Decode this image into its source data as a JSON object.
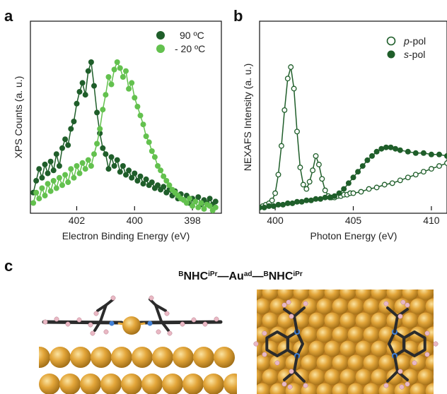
{
  "panels": {
    "a": "a",
    "b": "b",
    "c": "c"
  },
  "colors": {
    "dark_green": "#1f5e2a",
    "light_green": "#63c14e",
    "gold": "#e3a63a",
    "carbon": "#2b2b2b",
    "nitrogen": "#3f7fd6",
    "hydrogen": "#e9b8c4"
  },
  "chart_data": [
    {
      "type": "scatter",
      "panel": "a",
      "title": "",
      "xlabel": "Electron Binding Energy (eV)",
      "ylabel": "XPS Counts (a. u.)",
      "xlim": [
        403.6,
        397.0
      ],
      "x_reversed": true,
      "ylim": [
        0,
        1
      ],
      "x_ticks": [
        402,
        400,
        398
      ],
      "y_ticks": [],
      "grid": false,
      "legend_position": "top-right",
      "series": [
        {
          "name": "90 ºC",
          "color": "#1f5e2a",
          "x": [
            403.5,
            403.4,
            403.3,
            403.2,
            403.1,
            403.0,
            402.9,
            402.8,
            402.7,
            402.6,
            402.5,
            402.4,
            402.3,
            402.2,
            402.1,
            402.0,
            401.9,
            401.8,
            401.7,
            401.6,
            401.5,
            401.4,
            401.3,
            401.2,
            401.1,
            401.0,
            400.9,
            400.8,
            400.7,
            400.6,
            400.5,
            400.4,
            400.3,
            400.2,
            400.1,
            400.0,
            399.9,
            399.8,
            399.7,
            399.6,
            399.5,
            399.4,
            399.3,
            399.2,
            399.1,
            399.0,
            398.9,
            398.8,
            398.7,
            398.6,
            398.5,
            398.4,
            398.3,
            398.2,
            398.1,
            398.0,
            397.9,
            397.8,
            397.7,
            397.6,
            397.5,
            397.4,
            397.3,
            397.2
          ],
          "y": [
            0.12,
            0.2,
            0.28,
            0.22,
            0.31,
            0.25,
            0.33,
            0.27,
            0.38,
            0.3,
            0.42,
            0.48,
            0.44,
            0.55,
            0.6,
            0.72,
            0.8,
            0.86,
            0.78,
            0.94,
            1.0,
            0.84,
            0.66,
            0.52,
            0.42,
            0.38,
            0.28,
            0.36,
            0.3,
            0.34,
            0.26,
            0.3,
            0.24,
            0.27,
            0.22,
            0.25,
            0.2,
            0.23,
            0.18,
            0.21,
            0.17,
            0.19,
            0.15,
            0.17,
            0.14,
            0.16,
            0.12,
            0.14,
            0.1,
            0.13,
            0.08,
            0.11,
            0.07,
            0.1,
            0.05,
            0.08,
            0.06,
            0.09,
            0.04,
            0.07,
            0.05,
            0.08,
            0.04,
            0.06
          ]
        },
        {
          "name": "- 20 ºC",
          "color": "#63c14e",
          "x": [
            403.5,
            403.4,
            403.3,
            403.2,
            403.1,
            403.0,
            402.9,
            402.8,
            402.7,
            402.6,
            402.5,
            402.4,
            402.3,
            402.2,
            402.1,
            402.0,
            401.9,
            401.8,
            401.7,
            401.6,
            401.5,
            401.4,
            401.3,
            401.2,
            401.1,
            401.0,
            400.9,
            400.8,
            400.7,
            400.6,
            400.5,
            400.4,
            400.3,
            400.2,
            400.1,
            400.0,
            399.9,
            399.8,
            399.7,
            399.6,
            399.5,
            399.4,
            399.3,
            399.2,
            399.1,
            399.0,
            398.9,
            398.8,
            398.7,
            398.6,
            398.5,
            398.4,
            398.3,
            398.2,
            398.1,
            398.0,
            397.9,
            397.8,
            397.7,
            397.6,
            397.5,
            397.4,
            397.3,
            397.2
          ],
          "y": [
            0.05,
            0.12,
            0.08,
            0.15,
            0.1,
            0.18,
            0.13,
            0.2,
            0.15,
            0.22,
            0.17,
            0.24,
            0.19,
            0.28,
            0.22,
            0.3,
            0.25,
            0.32,
            0.28,
            0.34,
            0.3,
            0.38,
            0.45,
            0.55,
            0.68,
            0.78,
            0.9,
            0.85,
            0.95,
            1.0,
            0.96,
            0.9,
            0.94,
            0.82,
            0.86,
            0.76,
            0.7,
            0.64,
            0.58,
            0.5,
            0.46,
            0.4,
            0.36,
            0.3,
            0.27,
            0.23,
            0.2,
            0.17,
            0.14,
            0.12,
            0.1,
            0.08,
            0.07,
            0.05,
            0.08,
            0.03,
            0.06,
            0.02,
            0.05,
            0.01,
            0.04,
            0.03,
            0.0,
            0.02
          ]
        }
      ]
    },
    {
      "type": "line",
      "panel": "b",
      "title": "",
      "xlabel": "Photon Energy (eV)",
      "ylabel": "NEXAFS Intensity (a. u.)",
      "xlim": [
        399.0,
        411.0
      ],
      "ylim": [
        0,
        1
      ],
      "x_ticks": [
        400,
        405,
        410
      ],
      "y_ticks": [],
      "grid": false,
      "legend_position": "top-right",
      "series": [
        {
          "name_parts": [
            "p",
            "-pol"
          ],
          "marker": "open-circle",
          "color": "#1f5e2a",
          "x": [
            399.0,
            399.2,
            399.4,
            399.6,
            399.8,
            400.0,
            400.2,
            400.4,
            400.6,
            400.8,
            401.0,
            401.2,
            401.4,
            401.6,
            401.8,
            402.0,
            402.2,
            402.4,
            402.6,
            402.8,
            403.0,
            403.2,
            403.4,
            403.6,
            403.8,
            404.0,
            404.2,
            404.4,
            404.6,
            404.8,
            405.0,
            405.5,
            406.0,
            406.5,
            407.0,
            407.5,
            408.0,
            408.5,
            409.0,
            409.5,
            410.0,
            410.5,
            411.0
          ],
          "y": [
            0.02,
            0.03,
            0.04,
            0.05,
            0.07,
            0.12,
            0.25,
            0.45,
            0.7,
            0.92,
            1.0,
            0.85,
            0.55,
            0.3,
            0.18,
            0.15,
            0.2,
            0.28,
            0.38,
            0.32,
            0.22,
            0.14,
            0.1,
            0.09,
            0.09,
            0.1,
            0.1,
            0.11,
            0.11,
            0.12,
            0.12,
            0.13,
            0.15,
            0.16,
            0.18,
            0.19,
            0.21,
            0.23,
            0.25,
            0.27,
            0.29,
            0.31,
            0.33
          ]
        },
        {
          "name_parts": [
            "s",
            "-pol"
          ],
          "marker": "filled-circle",
          "color": "#1f5e2a",
          "x": [
            399.0,
            399.3,
            399.6,
            399.9,
            400.2,
            400.5,
            400.8,
            401.1,
            401.4,
            401.7,
            402.0,
            402.3,
            402.6,
            402.9,
            403.2,
            403.5,
            403.8,
            404.1,
            404.4,
            404.7,
            405.0,
            405.3,
            405.6,
            405.9,
            406.2,
            406.5,
            406.8,
            407.1,
            407.4,
            407.7,
            408.0,
            408.5,
            409.0,
            409.5,
            410.0,
            410.5,
            411.0
          ],
          "y": [
            0.02,
            0.02,
            0.03,
            0.03,
            0.04,
            0.04,
            0.05,
            0.05,
            0.06,
            0.06,
            0.07,
            0.07,
            0.08,
            0.08,
            0.09,
            0.09,
            0.1,
            0.12,
            0.15,
            0.19,
            0.23,
            0.27,
            0.31,
            0.35,
            0.38,
            0.41,
            0.43,
            0.44,
            0.44,
            0.43,
            0.42,
            0.41,
            0.4,
            0.4,
            0.39,
            0.39,
            0.38
          ]
        }
      ]
    }
  ],
  "panel_c": {
    "title_parts": [
      {
        "text": "B",
        "sup": true
      },
      {
        "text": "NHC",
        "sup": false
      },
      {
        "text": "iPr",
        "sup": true
      },
      {
        "text": "—Au",
        "sup": false
      },
      {
        "text": "ad",
        "sup": true
      },
      {
        "text": "—",
        "sup": false
      },
      {
        "text": "B",
        "sup": true
      },
      {
        "text": "NHC",
        "sup": false
      },
      {
        "text": "iPr",
        "sup": true
      }
    ]
  }
}
